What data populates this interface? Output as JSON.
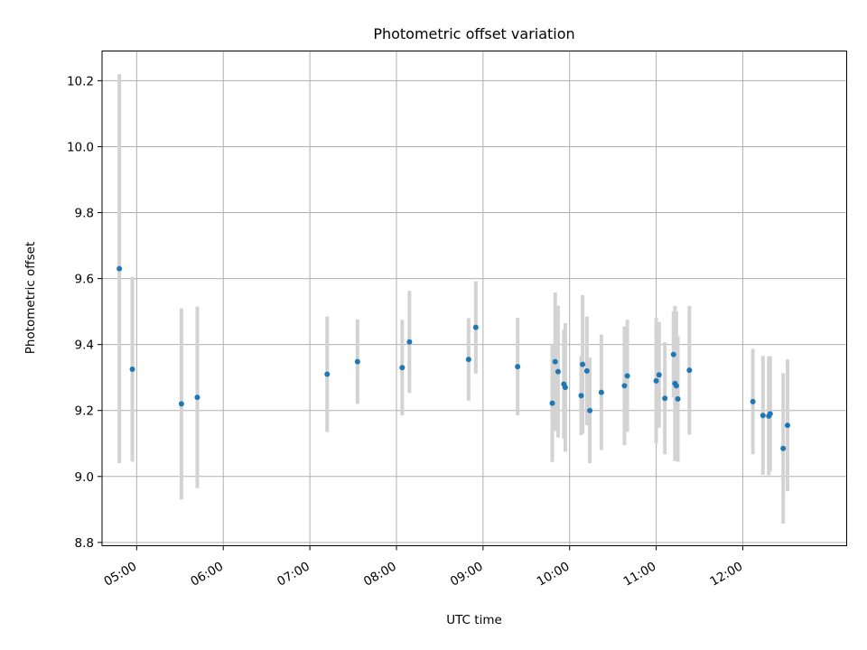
{
  "chart_data": {
    "type": "scatter",
    "title": "Photometric offset variation",
    "xlabel": "UTC time",
    "ylabel": "Photometric offset",
    "xlim": [
      "04:36",
      "13:12"
    ],
    "ylim": [
      8.79,
      10.29
    ],
    "x_ticks": [
      "05:00",
      "06:00",
      "07:00",
      "08:00",
      "09:00",
      "10:00",
      "11:00",
      "12:00"
    ],
    "y_ticks": [
      8.8,
      9.0,
      9.2,
      9.4,
      9.6,
      9.8,
      10.0,
      10.2
    ],
    "grid": true,
    "colors": {
      "point": "#1f77b4",
      "errorbar": "#d3d3d3"
    },
    "series": [
      {
        "points": [
          {
            "x": "04:48",
            "y": 9.63,
            "err": 0.59
          },
          {
            "x": "04:57",
            "y": 9.325,
            "err": 0.28
          },
          {
            "x": "05:31",
            "y": 9.22,
            "err": 0.29
          },
          {
            "x": "05:42",
            "y": 9.24,
            "err": 0.275
          },
          {
            "x": "07:12",
            "y": 9.31,
            "err": 0.175
          },
          {
            "x": "07:33",
            "y": 9.348,
            "err": 0.128
          },
          {
            "x": "08:04",
            "y": 9.33,
            "err": 0.145
          },
          {
            "x": "08:09",
            "y": 9.408,
            "err": 0.155
          },
          {
            "x": "08:50",
            "y": 9.355,
            "err": 0.125
          },
          {
            "x": "08:55",
            "y": 9.452,
            "err": 0.14
          },
          {
            "x": "09:24",
            "y": 9.333,
            "err": 0.148
          },
          {
            "x": "09:48",
            "y": 9.222,
            "err": 0.178
          },
          {
            "x": "09:50",
            "y": 9.348,
            "err": 0.21
          },
          {
            "x": "09:52",
            "y": 9.318,
            "err": 0.2
          },
          {
            "x": "09:56",
            "y": 9.28,
            "err": 0.165
          },
          {
            "x": "09:57",
            "y": 9.27,
            "err": 0.195
          },
          {
            "x": "10:08",
            "y": 9.245,
            "err": 0.12
          },
          {
            "x": "10:09",
            "y": 9.34,
            "err": 0.21
          },
          {
            "x": "10:12",
            "y": 9.32,
            "err": 0.165
          },
          {
            "x": "10:14",
            "y": 9.2,
            "err": 0.16
          },
          {
            "x": "10:22",
            "y": 9.255,
            "err": 0.175
          },
          {
            "x": "10:38",
            "y": 9.275,
            "err": 0.18
          },
          {
            "x": "10:40",
            "y": 9.305,
            "err": 0.17
          },
          {
            "x": "11:00",
            "y": 9.29,
            "err": 0.19
          },
          {
            "x": "11:02",
            "y": 9.308,
            "err": 0.16
          },
          {
            "x": "11:06",
            "y": 9.237,
            "err": 0.17
          },
          {
            "x": "11:12",
            "y": 9.37,
            "err": 0.13
          },
          {
            "x": "11:13",
            "y": 9.282,
            "err": 0.235
          },
          {
            "x": "11:14",
            "y": 9.275,
            "err": 0.225
          },
          {
            "x": "11:15",
            "y": 9.235,
            "err": 0.19
          },
          {
            "x": "11:23",
            "y": 9.322,
            "err": 0.195
          },
          {
            "x": "12:07",
            "y": 9.227,
            "err": 0.16
          },
          {
            "x": "12:14",
            "y": 9.185,
            "err": 0.18
          },
          {
            "x": "12:18",
            "y": 9.183,
            "err": 0.18
          },
          {
            "x": "12:19",
            "y": 9.19,
            "err": 0.175
          },
          {
            "x": "12:28",
            "y": 9.085,
            "err": 0.228
          },
          {
            "x": "12:31",
            "y": 9.155,
            "err": 0.2
          }
        ]
      }
    ]
  }
}
